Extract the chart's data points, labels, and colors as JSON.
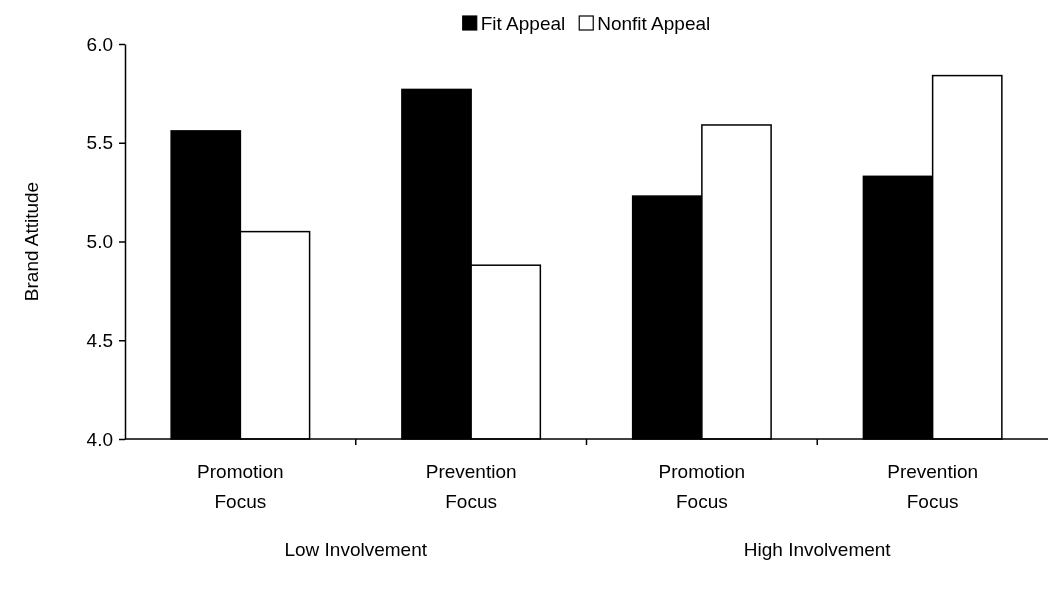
{
  "chart_data": {
    "type": "bar",
    "ylabel": "Brand Attitude",
    "categories": [
      "Promotion Focus",
      "Prevention Focus",
      "Promotion Focus",
      "Prevention Focus"
    ],
    "series": [
      {
        "name": "Fit Appeal",
        "color": "#000000",
        "values": [
          5.56,
          5.77,
          5.23,
          5.33
        ]
      },
      {
        "name": "Nonfit Appeal",
        "color": "#ffffff",
        "values": [
          5.05,
          4.88,
          5.59,
          5.84
        ]
      }
    ],
    "ylim": [
      4.0,
      6.0
    ],
    "yticks": [
      {
        "value": 4,
        "label": "4.0"
      },
      {
        "value": 4.5,
        "label": "4.5"
      },
      {
        "value": 5,
        "label": "5.0"
      },
      {
        "value": 5.5,
        "label": "5.5"
      },
      {
        "value": 6,
        "label": "6.0"
      }
    ],
    "annotations": [
      "Low Involvement",
      "High Involvement"
    ],
    "legend": "top"
  }
}
